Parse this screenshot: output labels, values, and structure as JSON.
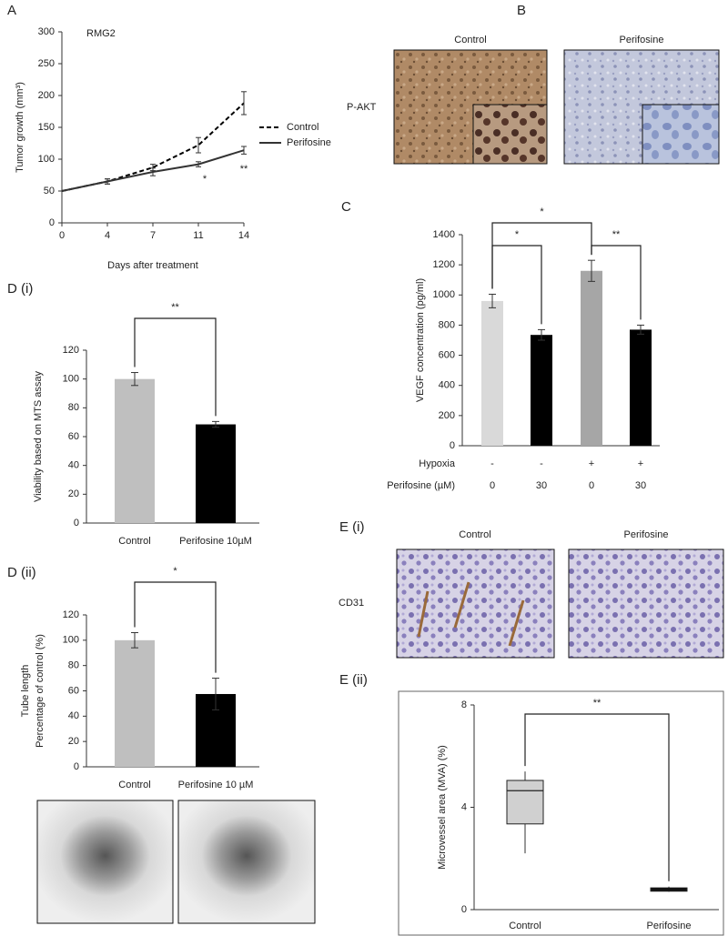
{
  "chart_data": [
    {
      "type": "line",
      "panel": "A",
      "title": "RMG2",
      "ylabel": "Tumor growth (mm³)",
      "xlabel": "Days after treatment",
      "categories": [
        "0",
        "4",
        "7",
        "11",
        "14"
      ],
      "series": [
        {
          "name": "Control",
          "color": "#000000",
          "style": "dashed",
          "values": [
            50,
            65,
            87,
            122,
            188
          ],
          "errors": [
            0,
            4,
            5,
            12,
            18
          ]
        },
        {
          "name": "Perifosine",
          "color": "#333333",
          "style": "solid",
          "values": [
            50,
            65,
            80,
            92,
            114
          ],
          "errors": [
            0,
            4,
            6,
            4,
            6
          ]
        }
      ],
      "ylim": [
        0,
        300
      ],
      "yticks": [
        0,
        50,
        100,
        150,
        200,
        250,
        300
      ],
      "legend": "right",
      "annotations": [
        "*",
        "**"
      ]
    },
    {
      "type": "bar",
      "panel": "C",
      "ylabel": "VEGF concentration (pg/ml)",
      "category_rows": [
        {
          "name": "Hypoxia",
          "labels": [
            "-",
            "-",
            "+",
            "+"
          ]
        },
        {
          "name": "Perifosine  (µM)",
          "labels": [
            "0",
            "30",
            "0",
            "30"
          ]
        }
      ],
      "values": [
        960,
        735,
        1160,
        770
      ],
      "errors": [
        45,
        35,
        70,
        30
      ],
      "colors": [
        "#d9d9d9",
        "#000000",
        "#a6a6a6",
        "#000000"
      ],
      "ylim": [
        0,
        1400
      ],
      "yticks": [
        0,
        200,
        400,
        600,
        800,
        1000,
        1200,
        1400
      ],
      "annotations": [
        "*",
        "**",
        "*"
      ]
    },
    {
      "type": "bar",
      "panel": "D (i)",
      "ylabel": "Viability based on MTS assay",
      "categories": [
        "Control",
        "Perifosine 10µM"
      ],
      "values": [
        100,
        68.5
      ],
      "errors": [
        4.5,
        2
      ],
      "colors": [
        "#bfbfbf",
        "#000000"
      ],
      "ylim": [
        0,
        120
      ],
      "yticks": [
        0,
        20,
        40,
        60,
        80,
        100,
        120
      ],
      "annotations": [
        "**"
      ]
    },
    {
      "type": "bar",
      "panel": "D (ii)",
      "ylabel": [
        "Tube length",
        "Percentage  of control (%)"
      ],
      "categories": [
        "Control",
        "Perifosine 10 µM"
      ],
      "values": [
        100,
        57.5
      ],
      "errors": [
        6,
        12.5
      ],
      "colors": [
        "#bfbfbf",
        "#000000"
      ],
      "ylim": [
        0,
        120
      ],
      "yticks": [
        0,
        20,
        40,
        60,
        80,
        100,
        120
      ],
      "annotations": [
        "*"
      ]
    },
    {
      "type": "box",
      "panel": "E (ii)",
      "ylabel": "Microvessel area (MVA) (%)",
      "categories": [
        "Control",
        "Perifosine"
      ],
      "boxes": [
        {
          "min": 2.2,
          "q1": 3.35,
          "median": 4.65,
          "q3": 5.05,
          "max": 5.4
        },
        {
          "min": 0.7,
          "q1": 0.72,
          "median": 0.78,
          "q3": 0.85,
          "max": 0.9
        }
      ],
      "colors": [
        "#d0d0d0",
        "#000000"
      ],
      "ylim": [
        0,
        8
      ],
      "yticks": [
        0,
        4,
        8
      ],
      "annotations": [
        "**"
      ]
    }
  ],
  "image_panels": [
    {
      "panel": "B",
      "columns": [
        "Control",
        "Perifosine"
      ],
      "row_label": "P-AKT"
    },
    {
      "panel": "E (i)",
      "columns": [
        "Control",
        "Perifosine"
      ],
      "row_label": "CD31"
    }
  ]
}
